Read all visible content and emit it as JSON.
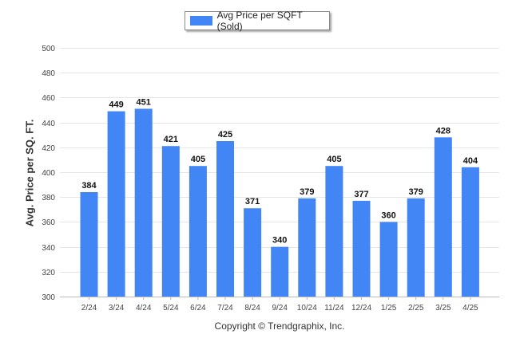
{
  "chart_data": {
    "type": "bar",
    "categories": [
      "2/24",
      "3/24",
      "4/24",
      "5/24",
      "6/24",
      "7/24",
      "8/24",
      "9/24",
      "10/24",
      "11/24",
      "12/24",
      "1/25",
      "2/25",
      "3/25",
      "4/25"
    ],
    "series": [
      {
        "name": "Avg Price per SQFT (Sold)",
        "values": [
          384,
          449,
          451,
          421,
          405,
          425,
          371,
          340,
          379,
          405,
          377,
          360,
          379,
          428,
          404
        ],
        "color": "#4285f4"
      }
    ],
    "ylabel": "Avg. Price per SQ. FT.",
    "xlabel": "",
    "ylim": [
      300,
      500
    ],
    "yticks": [
      300,
      320,
      340,
      360,
      380,
      400,
      420,
      440,
      460,
      480,
      500
    ],
    "grid": true,
    "legend_position": "top-center",
    "data_labels": true
  },
  "footer": {
    "copyright": "Copyright © Trendgraphix, Inc."
  }
}
